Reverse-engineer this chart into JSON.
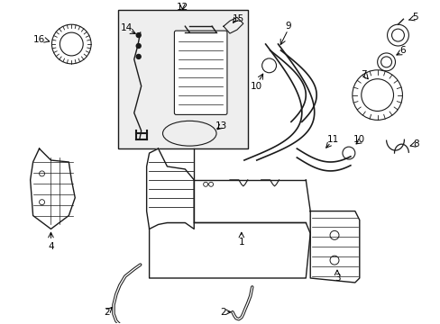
{
  "bg_color": "#ffffff",
  "lc": "#1a1a1a",
  "fig_width": 4.89,
  "fig_height": 3.6,
  "dpi": 100,
  "label_fontsize": 7.5
}
